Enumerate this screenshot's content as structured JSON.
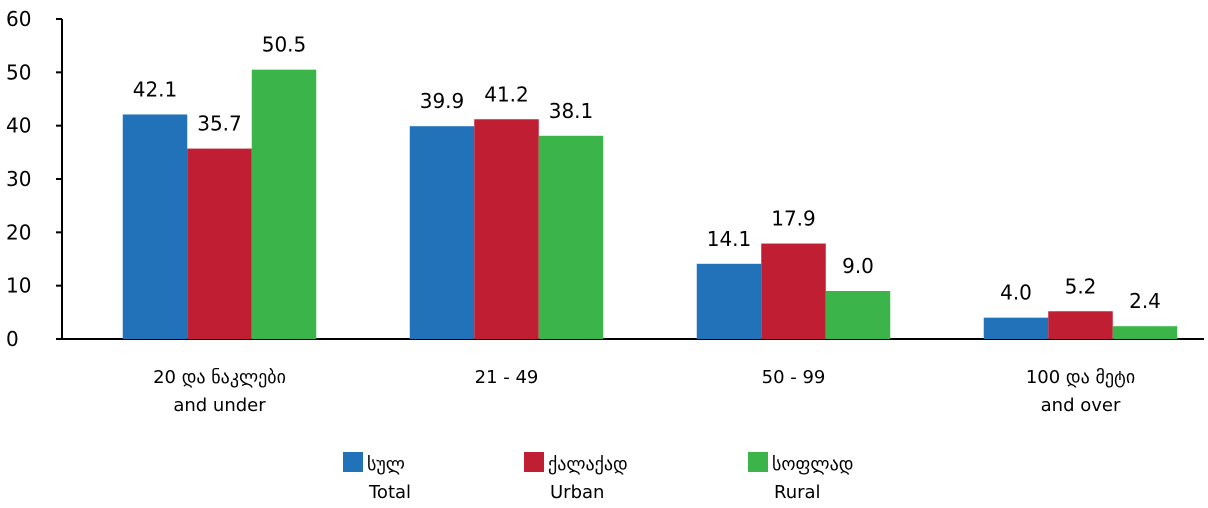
{
  "chart_data": {
    "type": "bar",
    "categories": [
      [
        "20 და ნაკლები",
        "and under"
      ],
      [
        "21 - 49"
      ],
      [
        "50 - 99"
      ],
      [
        "100 და მეტი",
        "and over"
      ]
    ],
    "series": [
      {
        "name": [
          "სულ",
          "Total"
        ],
        "color": "#2272BA",
        "values": [
          42.1,
          39.9,
          14.1,
          4.0
        ]
      },
      {
        "name": [
          "ქალაქად",
          "Urban"
        ],
        "color": "#C01F33",
        "values": [
          35.7,
          41.2,
          17.9,
          5.2
        ]
      },
      {
        "name": [
          "სოფლად",
          "Rural"
        ],
        "color": "#3BB54A",
        "values": [
          50.5,
          38.1,
          9.0,
          2.4
        ]
      }
    ],
    "ylim": [
      0,
      60
    ],
    "yticks": [
      0,
      10,
      20,
      30,
      40,
      50,
      60
    ],
    "grid": false,
    "legend": "bottom",
    "data_labels": true
  }
}
